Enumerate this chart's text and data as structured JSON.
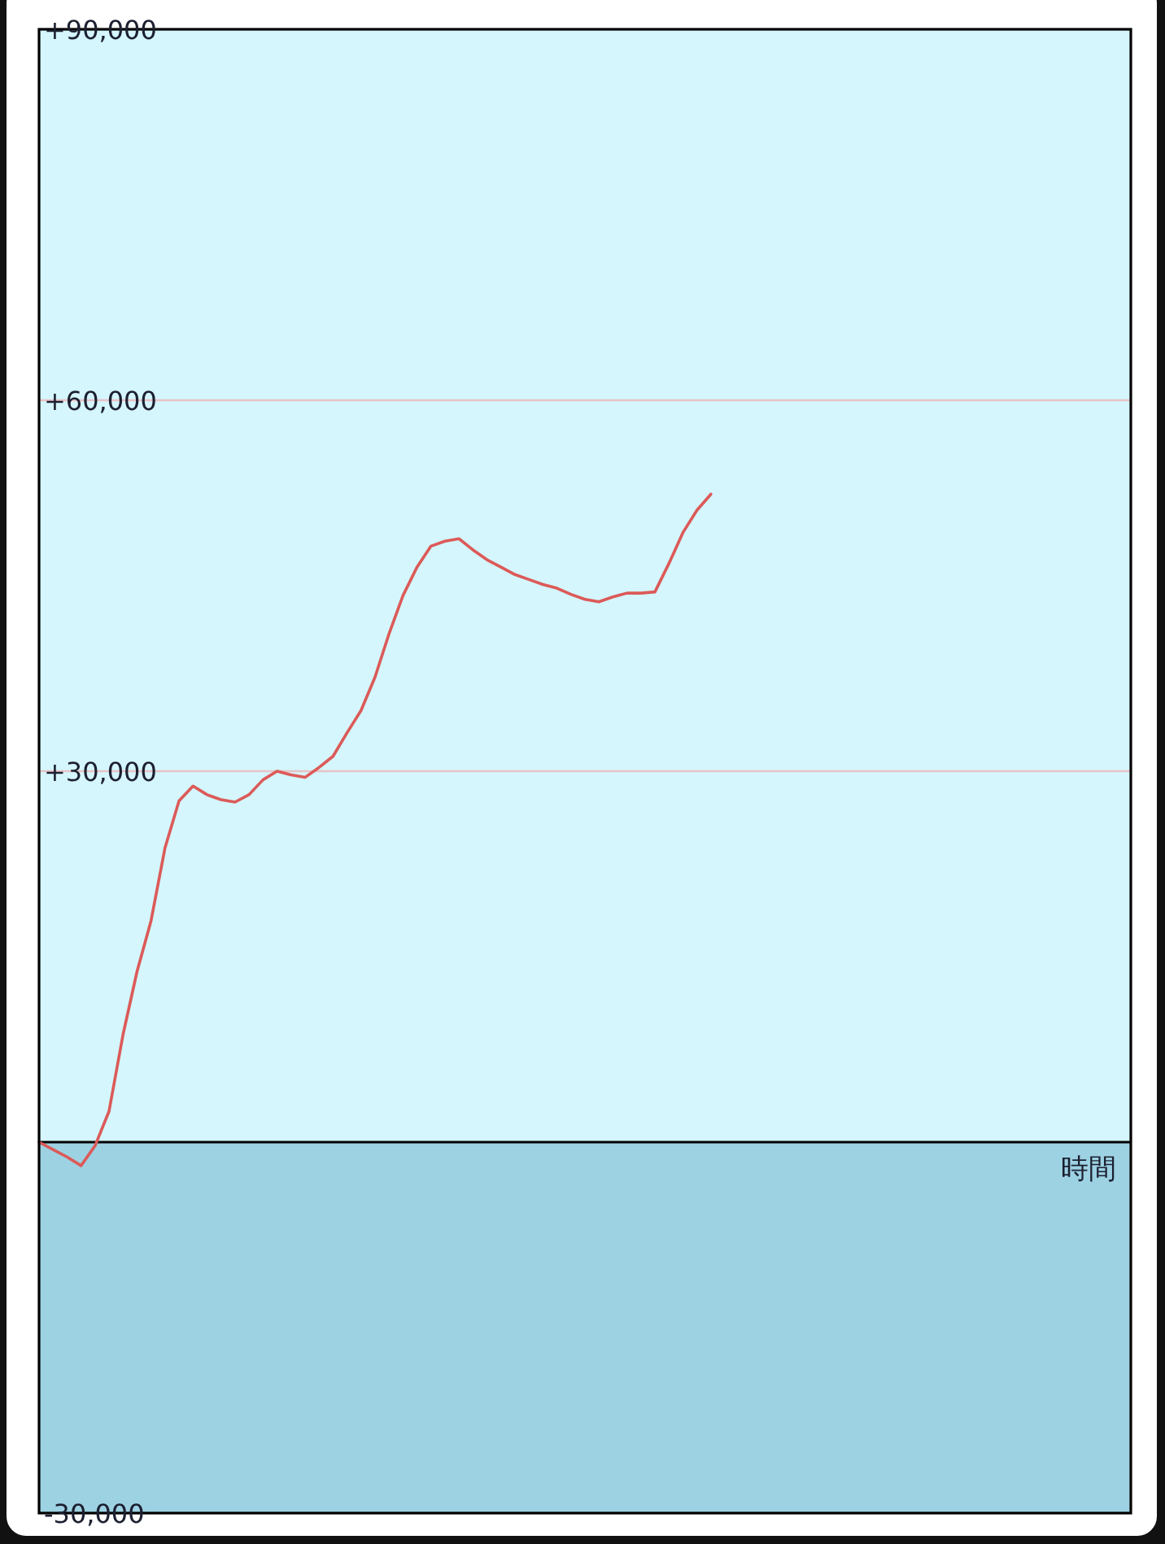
{
  "chart_data": {
    "type": "line",
    "xlabel": "時間",
    "categories": [
      null,
      null,
      null,
      null,
      null,
      null,
      null,
      null,
      null,
      null,
      null,
      null,
      null,
      null,
      null,
      null,
      null,
      null,
      null,
      null,
      null,
      null,
      null,
      null,
      null,
      null,
      null,
      null,
      null,
      null,
      null,
      null,
      null,
      null,
      null,
      null,
      null,
      null,
      null,
      null,
      null,
      null,
      null,
      null,
      null,
      null,
      null,
      null,
      null,
      null,
      null,
      null,
      null,
      null,
      null,
      null,
      null,
      null,
      null,
      null,
      null,
      null,
      null,
      null,
      null,
      null,
      null,
      null,
      null,
      null,
      null,
      null,
      null,
      null,
      null,
      null,
      null,
      null,
      null
    ],
    "series": [
      {
        "color": "#dc5a58",
        "values": [
          0,
          -600,
          -1200,
          -1900,
          -300,
          2500,
          8700,
          13800,
          17900,
          23800,
          27600,
          28800,
          28100,
          27700,
          27500,
          28100,
          29300,
          30000,
          29700,
          29500,
          30300,
          31200,
          33100,
          34900,
          37600,
          41100,
          44200,
          46500,
          48200,
          48600,
          48800,
          47900,
          47100,
          46500,
          45900,
          45500,
          45100,
          44800,
          44300,
          43900,
          43700,
          44100,
          44400,
          44400,
          44500,
          46800,
          49300,
          51100,
          52400,
          null,
          null,
          null,
          null,
          null,
          null,
          null,
          null,
          null,
          null,
          null,
          null,
          null,
          null,
          null,
          null,
          null,
          null,
          null,
          null,
          null,
          null,
          null,
          null,
          null,
          null,
          null,
          null,
          null,
          null
        ]
      }
    ],
    "ylim": [
      -30000,
      90000
    ],
    "yticks": [
      {
        "value": -30000,
        "label": "-30,000"
      },
      {
        "value": 30000,
        "label": "+30,000"
      },
      {
        "value": 60000,
        "label": "+60,000"
      },
      {
        "value": 90000,
        "label": "+90,000"
      }
    ],
    "grid": "y",
    "bands": [
      {
        "axis": "y",
        "from": -30000,
        "to": 0,
        "color": "#9dd2e3"
      }
    ],
    "tick_labels": "y"
  }
}
